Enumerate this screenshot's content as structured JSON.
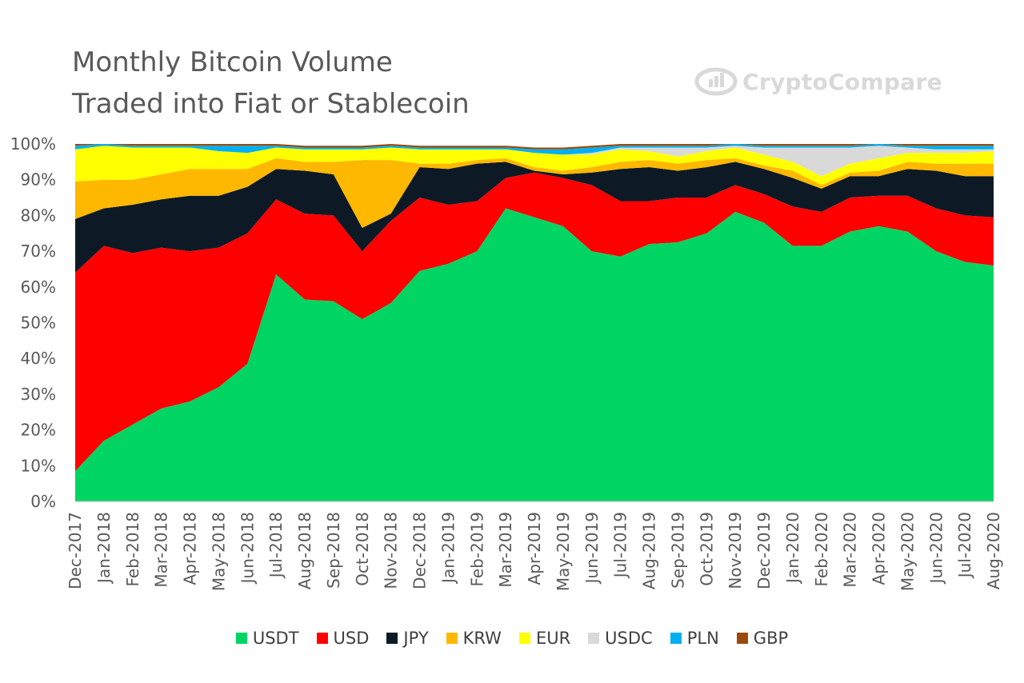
{
  "title_line1": "Monthly Bitcoin Volume",
  "title_line2": "Traded into Fiat or Stablecoin",
  "logo": {
    "text": "CryptoCompare",
    "icon": "cryptocompare-logo-icon",
    "color": "#d9d9d9"
  },
  "chart_data": {
    "type": "area",
    "stacked": true,
    "normalized": true,
    "y_ticks": [
      "0%",
      "10%",
      "20%",
      "30%",
      "40%",
      "50%",
      "60%",
      "70%",
      "80%",
      "90%",
      "100%"
    ],
    "ylim": [
      0,
      100
    ],
    "grid": false,
    "legend_position": "bottom",
    "categories": [
      "Dec-2017",
      "Jan-2018",
      "Feb-2018",
      "Mar-2018",
      "Apr-2018",
      "May-2018",
      "Jun-2018",
      "Jul-2018",
      "Aug-2018",
      "Sep-2018",
      "Oct-2018",
      "Nov-2018",
      "Dec-2018",
      "Jan-2019",
      "Feb-2019",
      "Mar-2019",
      "Apr-2019",
      "May-2019",
      "Jun-2019",
      "Jul-2019",
      "Aug-2019",
      "Sep-2019",
      "Oct-2019",
      "Nov-2019",
      "Dec-2019",
      "Jan-2020",
      "Feb-2020",
      "Mar-2020",
      "Apr-2020",
      "May-2020",
      "Jun-2020",
      "Jul-2020",
      "Aug-2020"
    ],
    "series": [
      {
        "name": "USDT",
        "color": "#00d563",
        "values": [
          8.5,
          17,
          21.5,
          26,
          28,
          32,
          38.5,
          63.5,
          56.5,
          56,
          51,
          55.5,
          64.5,
          66.5,
          70,
          82,
          79.5,
          77,
          70,
          68.5,
          72,
          72.5,
          75,
          81,
          78,
          71.5,
          71.5,
          75.5,
          77,
          75.5,
          70,
          67,
          66
        ]
      },
      {
        "name": "USD",
        "color": "#ff0000",
        "values": [
          55.5,
          54.5,
          48,
          45,
          42,
          39,
          36.5,
          21,
          24,
          24,
          19,
          23,
          20.5,
          16.5,
          14,
          8.5,
          12.5,
          13.5,
          18.5,
          15.5,
          12,
          12.5,
          10,
          7.5,
          8,
          11,
          9.5,
          9.5,
          8.5,
          10,
          12,
          13,
          13.5
        ]
      },
      {
        "name": "JPY",
        "color": "#0d1a26",
        "values": [
          15,
          10.5,
          13.5,
          13.5,
          15.5,
          14.5,
          13,
          8.5,
          12,
          11.5,
          6.5,
          2,
          8.5,
          10,
          10.5,
          4.5,
          0.5,
          1,
          3.5,
          9,
          9.5,
          7.5,
          8.5,
          6.5,
          7,
          8,
          6.5,
          6,
          5.5,
          7.5,
          10.5,
          11,
          11.5
        ]
      },
      {
        "name": "KRW",
        "color": "#ffb800",
        "values": [
          10.5,
          8,
          7,
          7,
          7.5,
          7.5,
          5,
          3,
          2.5,
          3.5,
          19,
          15,
          1,
          1.5,
          1,
          1,
          1,
          1,
          1.5,
          2,
          2,
          2,
          2,
          1,
          1,
          2,
          1,
          1,
          1.5,
          2,
          2,
          3.5,
          3.5
        ]
      },
      {
        "name": "EUR",
        "color": "#ffff00",
        "values": [
          9,
          9.5,
          9,
          7.5,
          6,
          5,
          4.5,
          3,
          3.5,
          3.5,
          3,
          3.5,
          4,
          4,
          3,
          2.5,
          4,
          4.5,
          3.5,
          3.5,
          2.5,
          2,
          2.5,
          3,
          3,
          2.5,
          2.5,
          2.5,
          3.5,
          2.5,
          3,
          3,
          3.5
        ]
      },
      {
        "name": "USDC",
        "color": "#d9d9d9",
        "values": [
          0,
          0,
          0,
          0,
          0,
          0,
          0,
          0,
          0,
          0,
          0,
          0,
          0,
          0,
          0,
          0,
          0,
          0,
          0.5,
          0.5,
          1,
          2.5,
          1,
          0.5,
          2,
          4,
          8,
          4.5,
          3.5,
          1.5,
          1,
          1,
          0.5
        ]
      },
      {
        "name": "PLN",
        "color": "#00b0f0",
        "values": [
          1,
          0.5,
          0.5,
          0.5,
          0.5,
          1.5,
          2,
          0.5,
          0.5,
          0.5,
          0.5,
          0.5,
          0.5,
          0.5,
          0.5,
          0.5,
          1,
          1.5,
          1.5,
          0.5,
          0.5,
          0.5,
          0.5,
          0.5,
          0.5,
          0.5,
          0.5,
          0.5,
          0.5,
          0.5,
          1,
          1,
          1
        ]
      },
      {
        "name": "GBP",
        "color": "#9c4a0b",
        "values": [
          0.5,
          0.5,
          0.5,
          0.5,
          0.5,
          0.5,
          0.5,
          0.5,
          0.5,
          0.5,
          0.5,
          0.5,
          0.5,
          0.5,
          0.5,
          0.5,
          0.5,
          0.5,
          0.5,
          0.5,
          0.5,
          0.5,
          0.5,
          0.5,
          0.5,
          0.5,
          0.5,
          0.5,
          0.5,
          0.5,
          0.5,
          0.5,
          0.5
        ]
      }
    ]
  }
}
